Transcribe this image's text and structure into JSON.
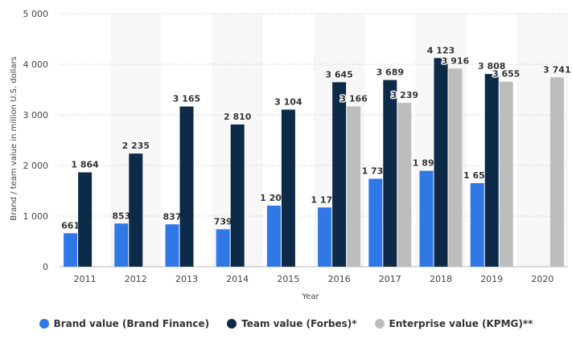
{
  "chart_data": {
    "type": "bar",
    "categories": [
      "2011",
      "2012",
      "2013",
      "2014",
      "2015",
      "2016",
      "2017",
      "2018",
      "2019",
      "2020"
    ],
    "series": [
      {
        "name": "Brand value (Brand Finance)",
        "color": "#2f78e6",
        "values": [
          661,
          853,
          837,
          739,
          1206,
          1170,
          1738,
          1895,
          1651,
          null
        ],
        "labels": [
          "661",
          "853",
          "837",
          "739",
          "1 206",
          "1 170",
          "1 738",
          "1 895",
          "1 651",
          ""
        ]
      },
      {
        "name": "Team value (Forbes)*",
        "color": "#0d2a48",
        "values": [
          1864,
          2235,
          3165,
          2810,
          3104,
          3645,
          3689,
          4123,
          3808,
          null
        ],
        "labels": [
          "1 864",
          "2 235",
          "3 165",
          "2 810",
          "3 104",
          "3 645",
          "3 689",
          "4 123",
          "3 808",
          ""
        ]
      },
      {
        "name": "Enterprise value (KPMG)**",
        "color": "#bdbdbd",
        "values": [
          null,
          null,
          null,
          null,
          null,
          3166,
          3239,
          3916,
          3655,
          3741
        ],
        "labels": [
          "",
          "",
          "",
          "",
          "",
          "3 166",
          "3 239",
          "3 916",
          "3 655",
          "3 741"
        ]
      }
    ],
    "xlabel": "Year",
    "ylabel": "Brand / team value in million U.S. dollars",
    "ylim": [
      0,
      5000
    ],
    "yticks": [
      0,
      1000,
      2000,
      3000,
      4000,
      5000
    ],
    "ytick_labels": [
      "0",
      "1 000",
      "2 000",
      "3 000",
      "4 000",
      "5 000"
    ],
    "grid": true,
    "legend_position": "bottom"
  }
}
